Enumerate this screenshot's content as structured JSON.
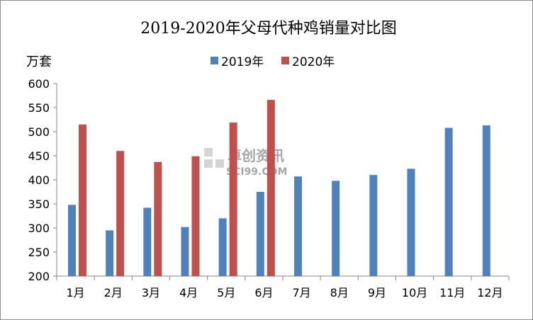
{
  "chart_data": {
    "type": "bar",
    "title": "2019-2020年父母代种鸡销量对比图",
    "ylabel": "万套",
    "xlabel": "",
    "ylim": [
      200,
      600
    ],
    "yticks": [
      200,
      250,
      300,
      350,
      400,
      450,
      500,
      550,
      600
    ],
    "grid": false,
    "legend_position": "top-center",
    "categories": [
      "1月",
      "2月",
      "3月",
      "4月",
      "5月",
      "6月",
      "7月",
      "8月",
      "9月",
      "10月",
      "11月",
      "12月"
    ],
    "series": [
      {
        "name": "2019年",
        "color": "#4F81BD",
        "values": [
          348,
          295,
          342,
          302,
          320,
          375,
          407,
          398,
          410,
          423,
          508,
          513
        ]
      },
      {
        "name": "2020年",
        "color": "#C0504D",
        "values": [
          515,
          460,
          437,
          449,
          519,
          566,
          null,
          null,
          null,
          null,
          null,
          null
        ]
      }
    ]
  },
  "watermark": {
    "brand": "卓创资讯",
    "site": "SCI99.COM"
  }
}
